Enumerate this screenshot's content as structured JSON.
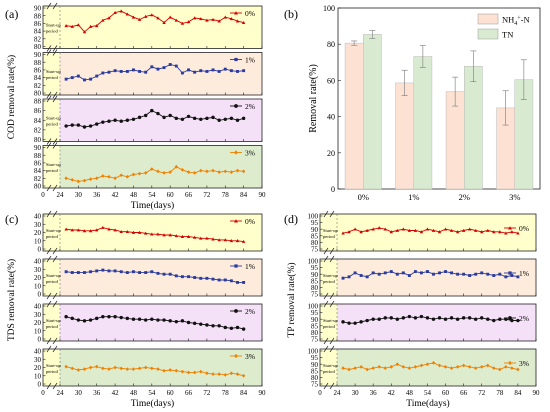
{
  "figure": {
    "panel_labels": [
      "(a)",
      "(b)",
      "(c)",
      "(d)"
    ],
    "startup_label_line1": "Start-up",
    "startup_label_line2": "period",
    "colors": {
      "startup_band": "#ffffcc",
      "band_0": "#ffffcc",
      "band_1": "#fdebdc",
      "band_2": "#f4e1f7",
      "band_3": "#ddeccd"
    }
  },
  "chart_data": [
    {
      "id": "a",
      "type": "line",
      "xlabel": "Time(days)",
      "ylabel": "COD removal rate(%)",
      "xlim": [
        0,
        90
      ],
      "x_ticks": [
        24,
        30,
        36,
        42,
        48,
        54,
        60,
        66,
        72,
        78,
        84,
        90
      ],
      "startup_end": 24,
      "x": [
        26,
        28,
        30,
        32,
        34,
        36,
        38,
        40,
        42,
        44,
        46,
        48,
        50,
        52,
        54,
        56,
        58,
        60,
        62,
        64,
        66,
        68,
        70,
        72,
        74,
        76,
        78,
        80,
        82,
        84
      ],
      "series": [
        {
          "name": "0%",
          "color": "#d40000",
          "marker": "triangle",
          "ylim": [
            80,
            90
          ],
          "y_ticks": [
            80,
            82,
            84,
            86,
            88,
            90
          ],
          "values": [
            85.4,
            85.2,
            85.6,
            83.8,
            85.2,
            85.4,
            86.8,
            87.4,
            88.8,
            89.2,
            88.4,
            87.6,
            87.0,
            87.8,
            88.2,
            87.4,
            86.2,
            87.6,
            86.8,
            86.0,
            86.4,
            87.4,
            87.2,
            86.8,
            87.0,
            86.6,
            87.6,
            87.2,
            86.6,
            86.2
          ]
        },
        {
          "name": "1%",
          "color": "#2a3a9e",
          "marker": "square",
          "ylim": [
            80,
            90
          ],
          "y_ticks": [
            80,
            82,
            84,
            86,
            88,
            90
          ],
          "values": [
            83.6,
            84.0,
            84.4,
            83.4,
            83.6,
            84.4,
            85.2,
            85.4,
            85.8,
            85.6,
            85.6,
            86.0,
            85.6,
            85.4,
            86.8,
            86.2,
            86.6,
            87.4,
            87.0,
            85.2,
            86.0,
            85.4,
            85.8,
            85.6,
            86.0,
            85.6,
            86.2,
            85.8,
            85.6,
            85.8
          ]
        },
        {
          "name": "2%",
          "color": "#111111",
          "marker": "circle",
          "ylim": [
            80,
            88
          ],
          "y_ticks": [
            80,
            82,
            84,
            86,
            88
          ],
          "values": [
            82.8,
            83.0,
            83.0,
            82.6,
            82.8,
            83.2,
            83.6,
            83.8,
            84.0,
            83.8,
            84.0,
            84.2,
            84.6,
            85.0,
            86.0,
            85.4,
            84.6,
            85.0,
            84.4,
            84.2,
            84.8,
            84.4,
            84.2,
            84.4,
            84.6,
            84.0,
            84.2,
            84.4,
            84.0,
            84.4
          ]
        },
        {
          "name": "3%",
          "color": "#f08000",
          "marker": "diamond",
          "ylim": [
            80,
            90
          ],
          "y_ticks": [
            80,
            82,
            84,
            86,
            88,
            90
          ],
          "values": [
            82.0,
            81.6,
            81.2,
            81.4,
            81.8,
            82.0,
            82.6,
            82.4,
            82.0,
            82.8,
            82.4,
            83.0,
            83.2,
            83.4,
            84.4,
            83.8,
            83.4,
            83.6,
            85.0,
            84.2,
            83.6,
            83.4,
            84.0,
            83.8,
            84.0,
            83.6,
            83.8,
            83.6,
            84.0,
            83.8
          ]
        }
      ]
    },
    {
      "id": "b",
      "type": "bar",
      "ylabel": "Removal rate(%)",
      "ylim": [
        0,
        100
      ],
      "y_ticks": [
        0,
        20,
        40,
        60,
        80,
        100
      ],
      "categories": [
        "0%",
        "1%",
        "2%",
        "3%"
      ],
      "series": [
        {
          "name": "NH4+-N",
          "legend_main": "NH",
          "legend_sub": "4",
          "legend_sup": "+",
          "legend_tail": "-N",
          "color": "#fde1d2",
          "values": [
            80.6,
            58.6,
            53.8,
            44.8
          ],
          "errors": [
            1.2,
            7.0,
            8.0,
            9.5
          ]
        },
        {
          "name": "TN",
          "color": "#d8ead0",
          "values": [
            85.4,
            73.2,
            67.8,
            60.4
          ],
          "errors": [
            2.2,
            6.0,
            8.5,
            11.0
          ]
        }
      ]
    },
    {
      "id": "c",
      "type": "line",
      "xlabel": "Time(days)",
      "ylabel": "TDS removal rate(%)",
      "xlim": [
        0,
        90
      ],
      "x_ticks": [
        24,
        30,
        36,
        42,
        48,
        54,
        60,
        66,
        72,
        78,
        84,
        90
      ],
      "startup_end": 24,
      "x": [
        26,
        28,
        30,
        32,
        34,
        36,
        38,
        40,
        42,
        44,
        46,
        48,
        50,
        52,
        54,
        56,
        58,
        60,
        62,
        64,
        66,
        68,
        70,
        72,
        74,
        76,
        78,
        80,
        82,
        84
      ],
      "series": [
        {
          "name": "0%",
          "color": "#d40000",
          "marker": "triangle",
          "ylim": [
            0,
            40
          ],
          "y_ticks": [
            0,
            10,
            20,
            30,
            40
          ],
          "values": [
            24,
            23,
            23,
            22,
            22,
            23,
            26,
            24,
            23,
            21,
            21,
            20,
            20,
            19,
            18,
            18,
            17,
            17,
            16,
            15,
            15,
            14,
            13,
            13,
            12,
            11,
            11,
            10,
            10,
            9
          ]
        },
        {
          "name": "1%",
          "color": "#2a3a9e",
          "marker": "square",
          "ylim": [
            0,
            40
          ],
          "y_ticks": [
            0,
            10,
            20,
            30,
            40
          ],
          "values": [
            27,
            26,
            26,
            26,
            27,
            28,
            29,
            28,
            28,
            27,
            26,
            27,
            26,
            26,
            27,
            25,
            24,
            24,
            22,
            21,
            21,
            20,
            19,
            19,
            18,
            17,
            17,
            16,
            14,
            14
          ]
        },
        {
          "name": "2%",
          "color": "#111111",
          "marker": "circle",
          "ylim": [
            0,
            40
          ],
          "y_ticks": [
            0,
            10,
            20,
            30,
            40
          ],
          "values": [
            27,
            25,
            23,
            22,
            23,
            25,
            27,
            27,
            27,
            26,
            25,
            24,
            24,
            23,
            24,
            23,
            23,
            22,
            21,
            22,
            20,
            19,
            18,
            17,
            16,
            16,
            14,
            13,
            14,
            12
          ]
        },
        {
          "name": "3%",
          "color": "#f08000",
          "marker": "diamond",
          "ylim": [
            0,
            40
          ],
          "y_ticks": [
            0,
            10,
            20,
            30,
            40
          ],
          "values": [
            21,
            19,
            17,
            18,
            20,
            21,
            19,
            18,
            20,
            19,
            18,
            18,
            19,
            20,
            19,
            18,
            16,
            17,
            16,
            15,
            14,
            14,
            15,
            13,
            12,
            12,
            11,
            13,
            12,
            10
          ]
        }
      ]
    },
    {
      "id": "d",
      "type": "line",
      "xlabel": "Time(days)",
      "ylabel": "TP removal rate(%)",
      "xlim": [
        0,
        90
      ],
      "x_ticks": [
        24,
        30,
        36,
        42,
        48,
        54,
        60,
        66,
        72,
        78,
        84,
        90
      ],
      "startup_end": 24,
      "x": [
        26,
        28,
        30,
        32,
        34,
        36,
        38,
        40,
        42,
        44,
        46,
        48,
        50,
        52,
        54,
        56,
        58,
        60,
        62,
        64,
        66,
        68,
        70,
        72,
        74,
        76,
        78,
        80,
        82,
        84
      ],
      "series": [
        {
          "name": "0%",
          "color": "#d40000",
          "marker": "triangle",
          "ylim": [
            75,
            100
          ],
          "y_ticks": [
            75,
            80,
            85,
            90,
            95,
            100
          ],
          "values": [
            87,
            88,
            90,
            88,
            89,
            90,
            91,
            90,
            88,
            89,
            90,
            89,
            89,
            88,
            90,
            89,
            88,
            90,
            89,
            88,
            89,
            90,
            89,
            88,
            89,
            88,
            88,
            87,
            88,
            87
          ]
        },
        {
          "name": "1%",
          "color": "#2a3a9e",
          "marker": "square",
          "ylim": [
            75,
            100
          ],
          "y_ticks": [
            75,
            80,
            85,
            90,
            95,
            100
          ],
          "values": [
            87,
            88,
            91,
            89,
            88,
            91,
            90,
            91,
            92,
            90,
            91,
            89,
            92,
            91,
            92,
            90,
            91,
            92,
            91,
            90,
            90,
            89,
            90,
            91,
            90,
            89,
            90,
            88,
            89,
            88
          ]
        },
        {
          "name": "2%",
          "color": "#111111",
          "marker": "circle",
          "ylim": [
            75,
            100
          ],
          "y_ticks": [
            75,
            80,
            85,
            90,
            95,
            100
          ],
          "values": [
            88,
            87,
            87,
            88,
            89,
            90,
            90,
            91,
            91,
            90,
            91,
            92,
            91,
            92,
            91,
            90,
            91,
            90,
            91,
            90,
            91,
            91,
            90,
            91,
            90,
            89,
            90,
            90,
            89,
            89
          ]
        },
        {
          "name": "3%",
          "color": "#f08000",
          "marker": "diamond",
          "ylim": [
            75,
            100
          ],
          "y_ticks": [
            75,
            80,
            85,
            90,
            95,
            100
          ],
          "values": [
            87,
            86,
            87,
            88,
            86,
            87,
            88,
            87,
            88,
            90,
            88,
            87,
            88,
            89,
            90,
            91,
            89,
            88,
            87,
            88,
            89,
            88,
            87,
            88,
            89,
            87,
            86,
            88,
            87,
            86
          ]
        }
      ]
    }
  ]
}
